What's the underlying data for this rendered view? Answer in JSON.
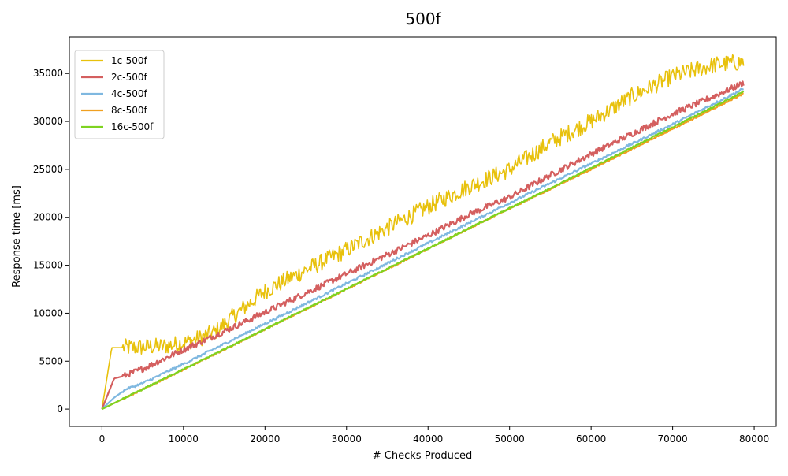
{
  "chart_data": {
    "type": "line",
    "title": "500f",
    "xlabel": "# Checks Produced",
    "ylabel": "Response time [ms]",
    "xlim": [
      -4000,
      82700
    ],
    "ylim": [
      -1800,
      38800
    ],
    "xticks": [
      0,
      10000,
      20000,
      30000,
      40000,
      50000,
      60000,
      70000,
      80000
    ],
    "xtick_labels": [
      "0",
      "10000",
      "20000",
      "30000",
      "40000",
      "50000",
      "60000",
      "70000",
      "80000"
    ],
    "yticks": [
      0,
      5000,
      10000,
      15000,
      20000,
      25000,
      30000,
      35000
    ],
    "ytick_labels": [
      "0",
      "5000",
      "10000",
      "15000",
      "20000",
      "25000",
      "30000",
      "35000"
    ],
    "grid": false,
    "legend_position": "top-left",
    "series": [
      {
        "name": "1c-500f",
        "color": "#e8c10c",
        "noise": 900,
        "x": [
          0,
          1200,
          2000,
          5000,
          8000,
          10000,
          12000,
          14000,
          16000,
          20000,
          25000,
          30000,
          35000,
          40000,
          45000,
          50000,
          55000,
          60000,
          65000,
          70000,
          75000,
          78700
        ],
        "y": [
          0,
          6400,
          6400,
          6450,
          6600,
          6900,
          7400,
          8100,
          9600,
          12300,
          14500,
          16600,
          18900,
          21100,
          23200,
          25000,
          27800,
          30000,
          32600,
          34700,
          35900,
          36200
        ]
      },
      {
        "name": "2c-500f",
        "color": "#d45f5f",
        "noise": 320,
        "x": [
          0,
          1500,
          2500,
          5000,
          10000,
          15000,
          20000,
          25000,
          30000,
          35000,
          40000,
          45000,
          50000,
          55000,
          60000,
          65000,
          70000,
          75000,
          78700
        ],
        "y": [
          0,
          3200,
          3400,
          4200,
          6200,
          8100,
          10100,
          12100,
          14100,
          16100,
          18100,
          20300,
          22100,
          24400,
          26600,
          28700,
          30800,
          32600,
          34000
        ]
      },
      {
        "name": "4c-500f",
        "color": "#7fb8e0",
        "noise": 120,
        "x": [
          0,
          1500,
          3000,
          5000,
          10000,
          20000,
          30000,
          40000,
          50000,
          60000,
          70000,
          78700
        ],
        "y": [
          0,
          1200,
          2100,
          2700,
          4700,
          8900,
          13100,
          17300,
          21500,
          25600,
          29700,
          33400
        ]
      },
      {
        "name": "8c-500f",
        "color": "#f0a020",
        "noise": 70,
        "x": [
          0,
          10000,
          20000,
          30000,
          40000,
          50000,
          60000,
          70000,
          78700
        ],
        "y": [
          0,
          4100,
          8300,
          12500,
          16700,
          20900,
          25000,
          29200,
          32900
        ]
      },
      {
        "name": "16c-500f",
        "color": "#7ed321",
        "noise": 70,
        "x": [
          0,
          10000,
          20000,
          30000,
          40000,
          50000,
          60000,
          70000,
          78700
        ],
        "y": [
          0,
          4150,
          8350,
          12550,
          16750,
          20950,
          25150,
          29400,
          33100
        ]
      }
    ]
  }
}
